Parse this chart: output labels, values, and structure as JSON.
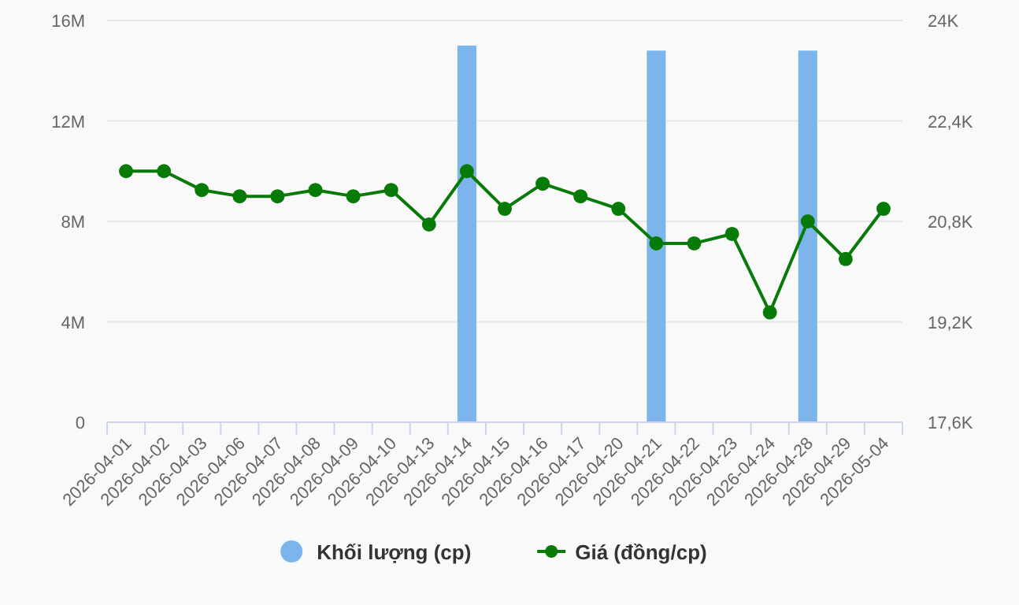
{
  "chart_data": {
    "type": "bar",
    "categories": [
      "2026-04-01",
      "2026-04-02",
      "2026-04-03",
      "2026-04-06",
      "2026-04-07",
      "2026-04-08",
      "2026-04-09",
      "2026-04-10",
      "2026-04-13",
      "2026-04-14",
      "2026-04-15",
      "2026-04-16",
      "2026-04-17",
      "2026-04-20",
      "2026-04-21",
      "2026-04-22",
      "2026-04-23",
      "2026-04-24",
      "2026-04-28",
      "2026-04-29",
      "2026-05-04"
    ],
    "series": [
      {
        "name": "Khối lượng (cp)",
        "color": "#7cb5ec",
        "values": [
          0,
          0,
          0,
          0,
          0,
          0,
          0,
          0,
          0,
          15000000,
          0,
          0,
          0,
          0,
          14800000,
          0,
          0,
          0,
          14800000,
          0,
          0
        ]
      },
      {
        "name": "Giá (đồng/cp)",
        "type": "line",
        "axis": "y2",
        "color": "#087a08",
        "values": [
          21600,
          21600,
          21300,
          21200,
          21200,
          21300,
          21200,
          21300,
          20750,
          21600,
          21000,
          21400,
          21200,
          21000,
          20450,
          20450,
          20600,
          19350,
          20800,
          20200,
          21000
        ]
      }
    ],
    "ylim": [
      0,
      16000000
    ],
    "yticks": [
      {
        "value": 0,
        "label": "0"
      },
      {
        "value": 4000000,
        "label": "4M"
      },
      {
        "value": 8000000,
        "label": "8M"
      },
      {
        "value": 12000000,
        "label": "12M"
      },
      {
        "value": 16000000,
        "label": "16M"
      }
    ],
    "y2lim": [
      17600,
      24000
    ],
    "y2ticks": [
      {
        "value": 17600,
        "label": "17,6K"
      },
      {
        "value": 19200,
        "label": "19,2K"
      },
      {
        "value": 20800,
        "label": "20,8K"
      },
      {
        "value": 22400,
        "label": "22,4K"
      },
      {
        "value": 24000,
        "label": "24K"
      }
    ],
    "grid": "y",
    "legend": "bottom",
    "marker": "circle",
    "line_style": "solid"
  }
}
